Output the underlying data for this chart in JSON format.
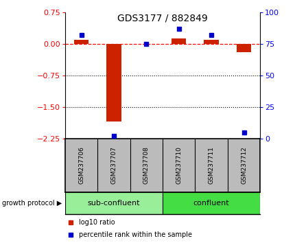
{
  "title": "GDS3177 / 882849",
  "samples": [
    "GSM237706",
    "GSM237707",
    "GSM237708",
    "GSM237710",
    "GSM237711",
    "GSM237712"
  ],
  "log10_ratio": [
    0.1,
    -1.85,
    0.0,
    0.12,
    0.1,
    -0.2
  ],
  "percentile_rank": [
    82,
    2,
    75,
    87,
    82,
    5
  ],
  "ylim_left": [
    -2.25,
    0.75
  ],
  "ylim_right": [
    0,
    100
  ],
  "yticks_left": [
    0.75,
    0,
    -0.75,
    -1.5,
    -2.25
  ],
  "yticks_right": [
    100,
    75,
    50,
    25,
    0
  ],
  "bar_color": "#CC2200",
  "dot_color": "#0000CC",
  "groups": [
    {
      "label": "sub-confluent",
      "indices": [
        0,
        1,
        2
      ],
      "color": "#99EE99"
    },
    {
      "label": "confluent",
      "indices": [
        3,
        4,
        5
      ],
      "color": "#44DD44"
    }
  ],
  "group_protocol_label": "growth protocol",
  "legend_items": [
    {
      "label": "log10 ratio",
      "color": "#CC2200"
    },
    {
      "label": "percentile rank within the sample",
      "color": "#0000CC"
    }
  ],
  "sample_box_color": "#BBBBBB",
  "background_color": "#ffffff"
}
